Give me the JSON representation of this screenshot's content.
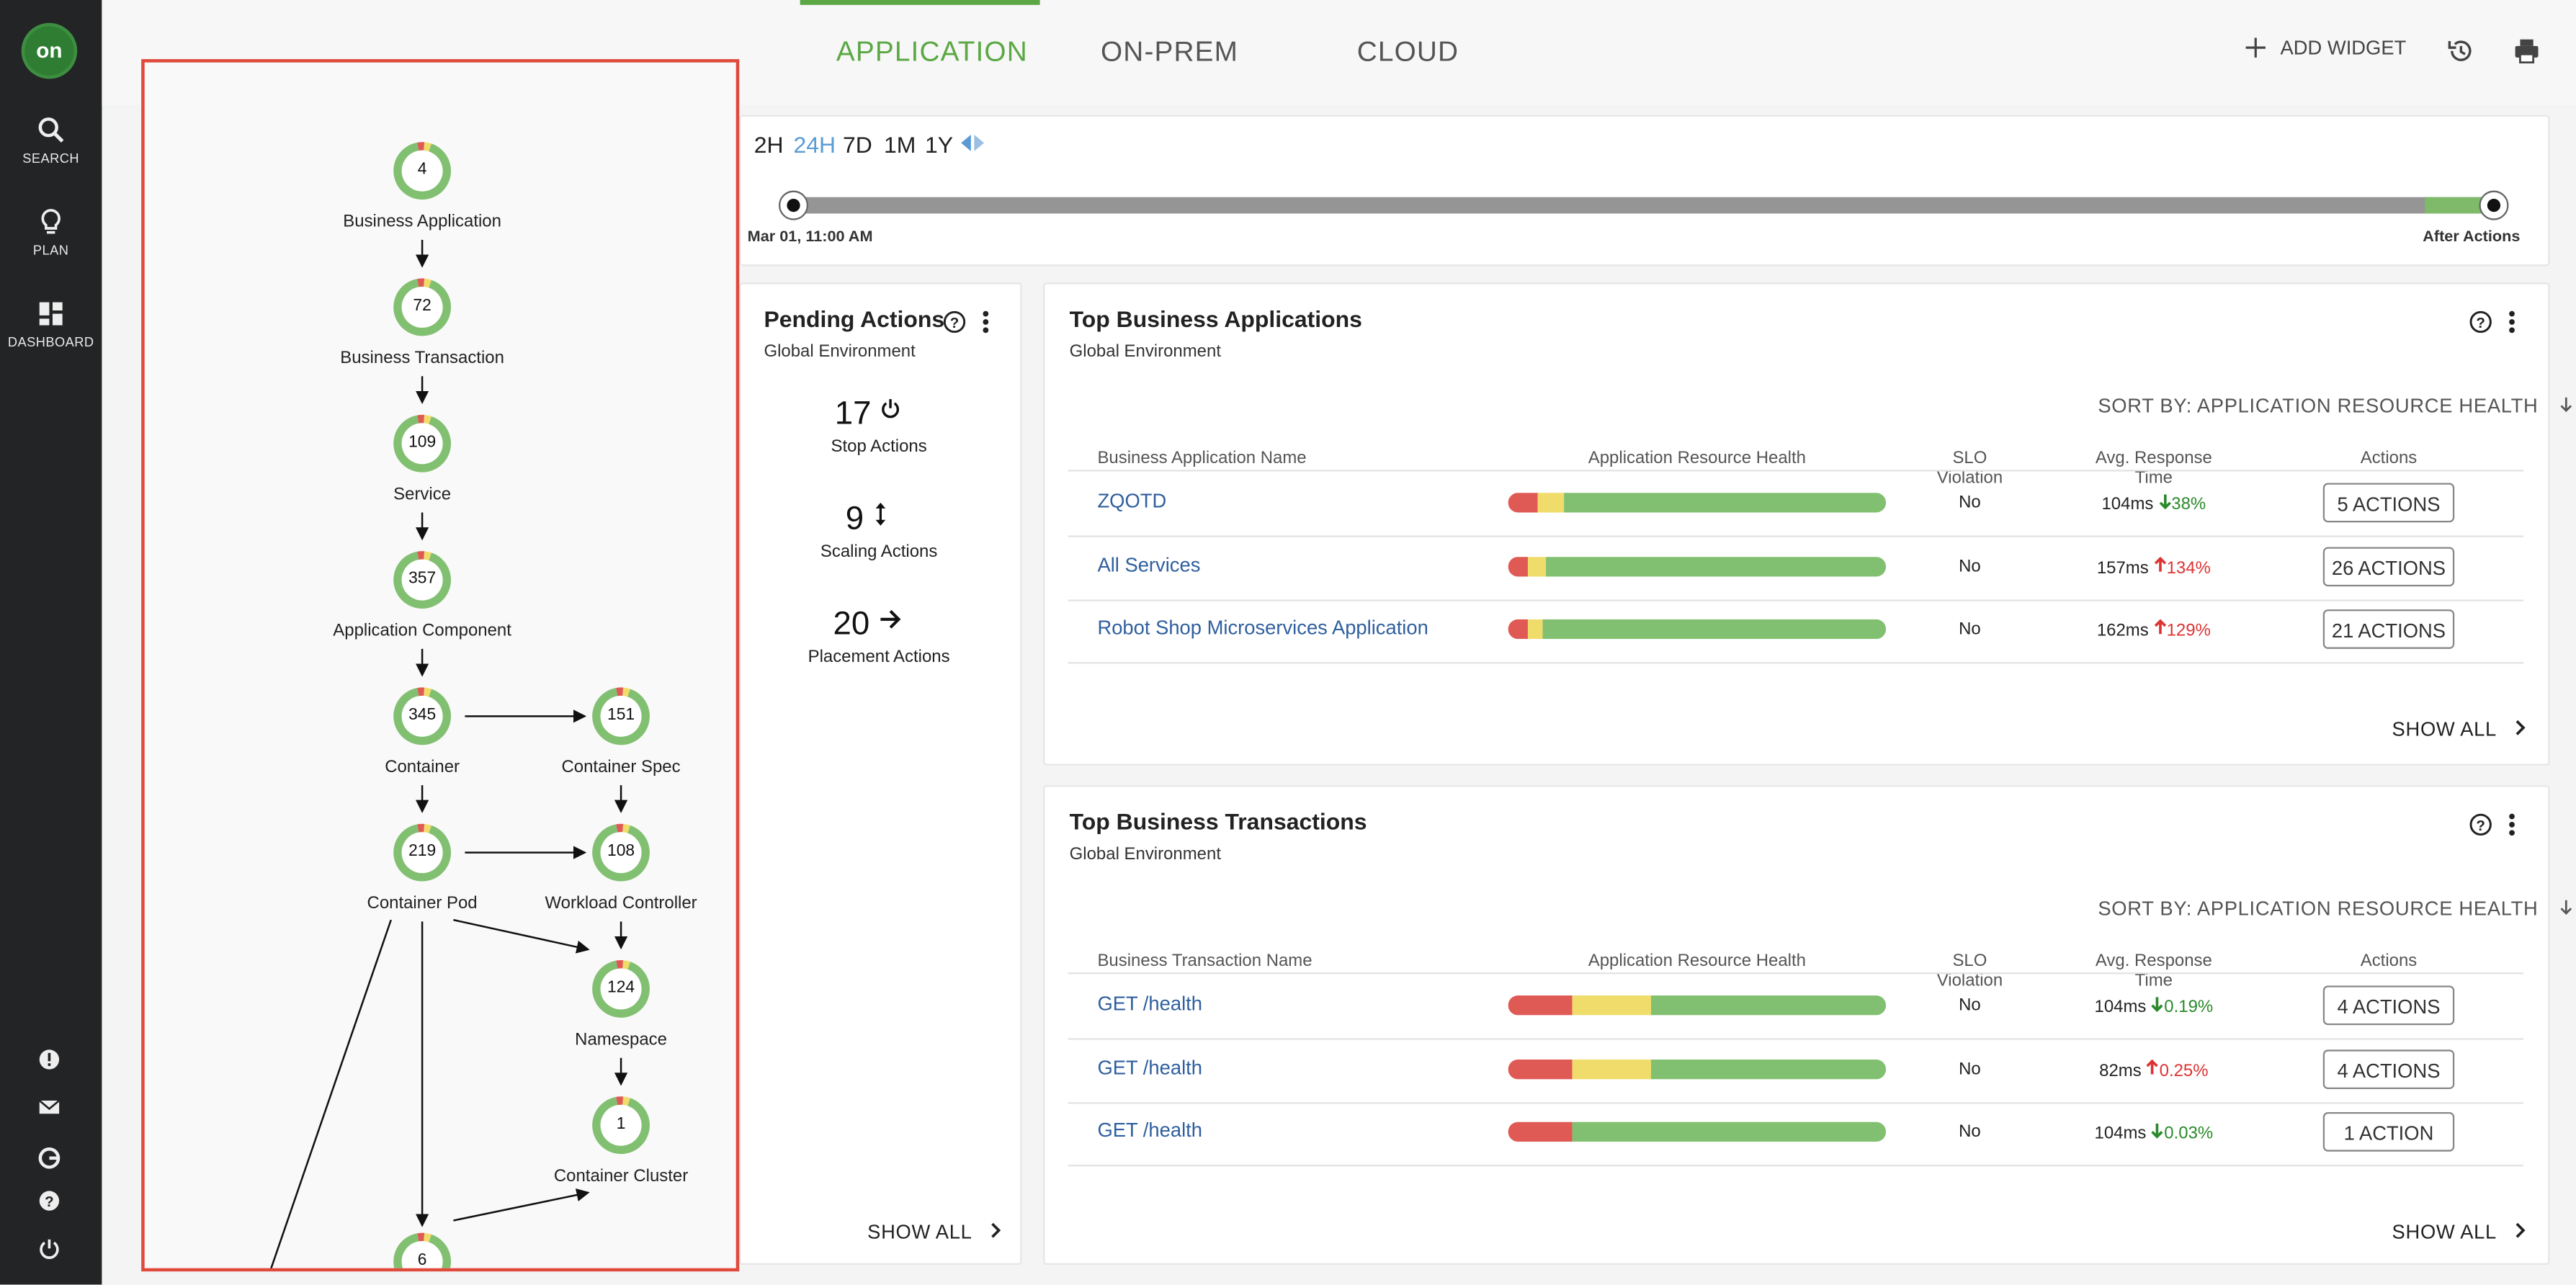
{
  "app": {
    "logo": "on"
  },
  "sidebar": {
    "items": [
      {
        "label": "SEARCH",
        "icon": "search-icon"
      },
      {
        "label": "PLAN",
        "icon": "lightbulb-icon"
      },
      {
        "label": "DASHBOARD",
        "icon": "dashboard-icon"
      }
    ],
    "bottom_icons": [
      "alert-icon",
      "mail-icon",
      "google-icon",
      "help-icon",
      "power-icon"
    ]
  },
  "tabs": [
    {
      "label": "APPLICATION",
      "active": true
    },
    {
      "label": "ON-PREM",
      "active": false
    },
    {
      "label": "CLOUD",
      "active": false
    }
  ],
  "toolbar": {
    "add_widget": "ADD WIDGET"
  },
  "timeline": {
    "ranges": [
      "2H",
      "24H",
      "7D",
      "1M",
      "1Y"
    ],
    "active_range": "24H",
    "start_label": "Mar 01, 11:00 AM",
    "end_label": "After Actions"
  },
  "supply_chain": {
    "nodes": [
      {
        "id": "ba",
        "count": "4",
        "label": "Business Application"
      },
      {
        "id": "bt",
        "count": "72",
        "label": "Business Transaction"
      },
      {
        "id": "svc",
        "count": "109",
        "label": "Service"
      },
      {
        "id": "ac",
        "count": "357",
        "label": "Application Component"
      },
      {
        "id": "ctr",
        "count": "345",
        "label": "Container"
      },
      {
        "id": "cs",
        "count": "151",
        "label": "Container Spec"
      },
      {
        "id": "pod",
        "count": "219",
        "label": "Container Pod"
      },
      {
        "id": "wc",
        "count": "108",
        "label": "Workload Controller"
      },
      {
        "id": "ns",
        "count": "124",
        "label": "Namespace"
      },
      {
        "id": "cc",
        "count": "1",
        "label": "Container Cluster"
      },
      {
        "id": "vm",
        "count": "6",
        "label": ""
      }
    ]
  },
  "pending": {
    "title": "Pending Actions",
    "subtitle": "Global Environment",
    "items": [
      {
        "count": "17",
        "label": "Stop Actions",
        "icon": "power-icon"
      },
      {
        "count": "9",
        "label": "Scaling Actions",
        "icon": "resize-icon"
      },
      {
        "count": "20",
        "label": "Placement Actions",
        "icon": "arrow-right-icon"
      }
    ],
    "show_all": "SHOW ALL"
  },
  "top_apps": {
    "title": "Top Business Applications",
    "subtitle": "Global Environment",
    "sort_by": "SORT BY: APPLICATION RESOURCE HEALTH",
    "columns": [
      "Business Application Name",
      "Application Resource Health",
      "SLO Violation",
      "Avg. Response Time",
      "Actions"
    ],
    "rows": [
      {
        "name": "ZQOTD",
        "health": [
          0.08,
          0.07,
          0.85
        ],
        "slo": "No",
        "resp": "104ms",
        "delta": "38%",
        "dir": "down",
        "actions": "5 ACTIONS"
      },
      {
        "name": "All Services",
        "health": [
          0.05,
          0.05,
          0.9
        ],
        "slo": "No",
        "resp": "157ms",
        "delta": "134%",
        "dir": "up",
        "actions": "26 ACTIONS"
      },
      {
        "name": "Robot Shop Microservices Application",
        "health": [
          0.05,
          0.04,
          0.91
        ],
        "slo": "No",
        "resp": "162ms",
        "delta": "129%",
        "dir": "up",
        "actions": "21 ACTIONS"
      }
    ],
    "show_all": "SHOW ALL"
  },
  "top_txns": {
    "title": "Top Business Transactions",
    "subtitle": "Global Environment",
    "sort_by": "SORT BY: APPLICATION RESOURCE HEALTH",
    "columns": [
      "Business Transaction Name",
      "Application Resource Health",
      "SLO Violation",
      "Avg. Response Time",
      "Actions"
    ],
    "rows": [
      {
        "name": "GET /health",
        "health": [
          0.17,
          0.21,
          0.62
        ],
        "slo": "No",
        "resp": "104ms",
        "delta": "0.19%",
        "dir": "down",
        "actions": "4 ACTIONS"
      },
      {
        "name": "GET /health",
        "health": [
          0.17,
          0.21,
          0.62
        ],
        "slo": "No",
        "resp": "82ms",
        "delta": "0.25%",
        "dir": "up",
        "actions": "4 ACTIONS"
      },
      {
        "name": "GET /health",
        "health": [
          0.17,
          0.0,
          0.83
        ],
        "slo": "No",
        "resp": "104ms",
        "delta": "0.03%",
        "dir": "down",
        "actions": "1 ACTION"
      }
    ],
    "show_all": "SHOW ALL"
  },
  "colors": {
    "accent": "#5ba844",
    "critical": "#e05a55",
    "minor": "#f0dc6a",
    "normal": "#82c071",
    "link": "#2f5f9e"
  }
}
